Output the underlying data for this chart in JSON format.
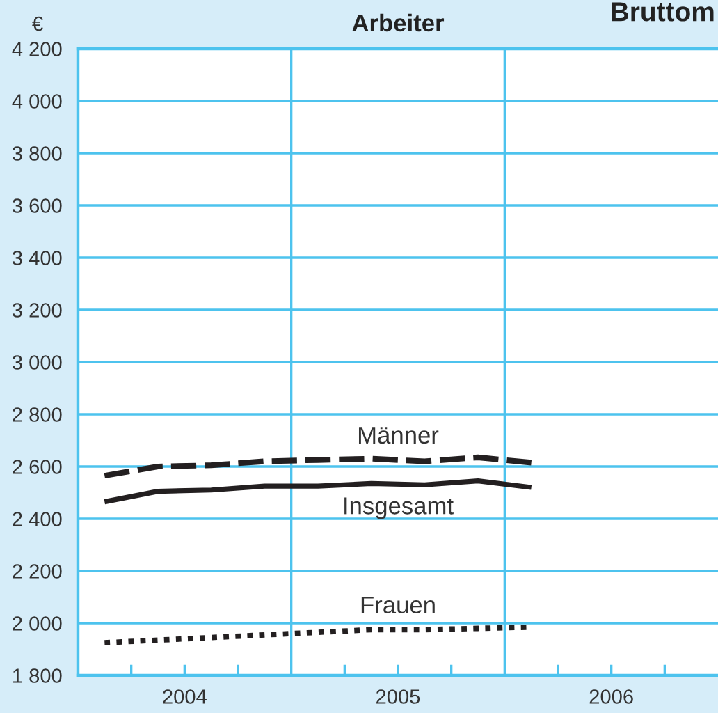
{
  "chart_data": {
    "type": "line",
    "title": "Arbeiter",
    "ylabel": "€",
    "annotations": [
      "Bruttom"
    ],
    "x": [
      2004.125,
      2004.375,
      2004.625,
      2004.875,
      2005.125,
      2005.375,
      2005.625,
      2005.875,
      2006.125
    ],
    "series": [
      {
        "name": "Männer",
        "color": "#231f20",
        "line_style": "dashed",
        "values": [
          2565,
          2600,
          2605,
          2620,
          2625,
          2630,
          2620,
          2635,
          2615
        ]
      },
      {
        "name": "Insgesamt",
        "color": "#231f20",
        "line_style": "solid",
        "values": [
          2465,
          2505,
          2510,
          2525,
          2525,
          2535,
          2530,
          2545,
          2520
        ]
      },
      {
        "name": "Frauen",
        "color": "#231f20",
        "line_style": "dotted",
        "values": [
          1925,
          1935,
          1945,
          1955,
          1965,
          1975,
          1975,
          1980,
          1985
        ]
      }
    ],
    "xlim": [
      2004,
      2007
    ],
    "xticks": [
      {
        "value": 2004.25,
        "label": null
      },
      {
        "value": 2004.5,
        "label": "2004"
      },
      {
        "value": 2004.75,
        "label": null
      },
      {
        "value": 2005.25,
        "label": null
      },
      {
        "value": 2005.5,
        "label": "2005"
      },
      {
        "value": 2005.75,
        "label": null
      },
      {
        "value": 2006.25,
        "label": null
      },
      {
        "value": 2006.5,
        "label": "2006"
      },
      {
        "value": 2006.75,
        "label": null
      }
    ],
    "ylim": [
      1800,
      4200
    ],
    "yticks": [
      {
        "value": 1800,
        "label": "1 800"
      },
      {
        "value": 2000,
        "label": "2 000"
      },
      {
        "value": 2200,
        "label": "2 200"
      },
      {
        "value": 2400,
        "label": "2 400"
      },
      {
        "value": 2600,
        "label": "2 600"
      },
      {
        "value": 2800,
        "label": "2 800"
      },
      {
        "value": 3000,
        "label": "3 000"
      },
      {
        "value": 3200,
        "label": "3 200"
      },
      {
        "value": 3400,
        "label": "3 400"
      },
      {
        "value": 3600,
        "label": "3 600"
      },
      {
        "value": 3800,
        "label": "3 800"
      },
      {
        "value": 4000,
        "label": "4 000"
      },
      {
        "value": 4200,
        "label": "4 200"
      }
    ],
    "grid": "y",
    "ref_lines": [
      {
        "axis": "x",
        "value": 2005,
        "color": "#4dc3ee"
      },
      {
        "axis": "x",
        "value": 2006,
        "color": "#4dc3ee"
      }
    ]
  }
}
